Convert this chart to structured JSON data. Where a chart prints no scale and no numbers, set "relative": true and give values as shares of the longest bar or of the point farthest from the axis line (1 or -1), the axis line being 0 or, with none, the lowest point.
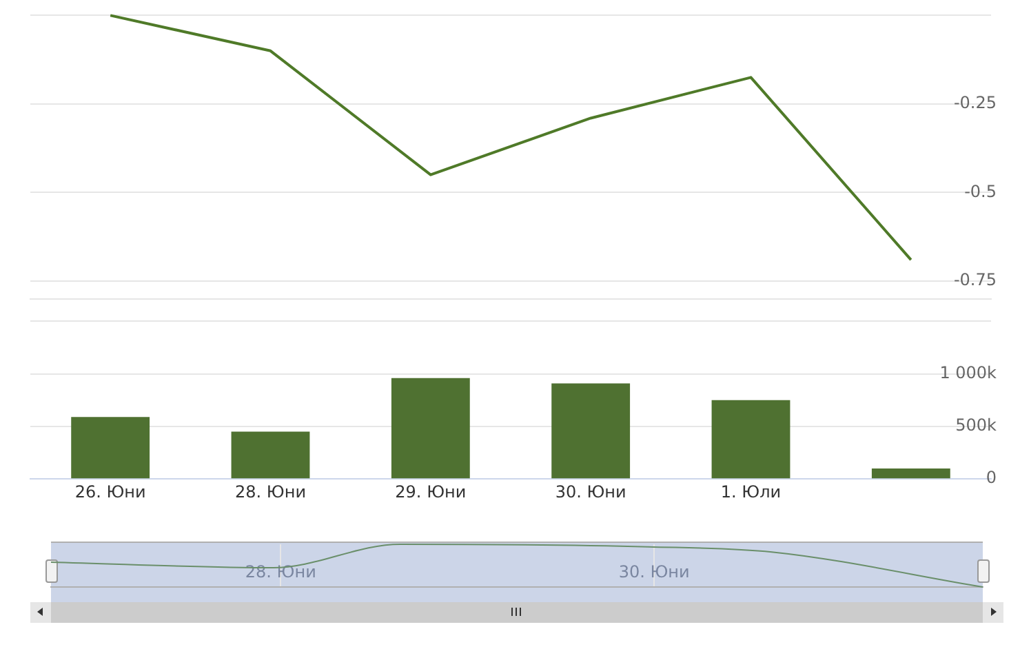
{
  "chart_data": [
    {
      "type": "line",
      "categories": [
        null,
        null,
        null,
        null,
        null,
        null
      ],
      "series": [
        {
          "color": "#4f7a28",
          "values": [
            0,
            -0.1,
            -0.45,
            -0.29,
            -0.175,
            -0.69
          ]
        }
      ],
      "ylim": [
        -0.8,
        0
      ],
      "yticks": [
        {
          "value": 0,
          "label": null
        },
        -0.25,
        -0.5,
        -0.75
      ],
      "grid": "y",
      "tick_labels": "y"
    },
    {
      "type": "bar",
      "categories": [
        "26. Юни",
        "28. Юни",
        "29. Юни",
        "30. Юни",
        "1. Юли",
        null
      ],
      "values": [
        590000,
        450000,
        960000,
        910000,
        750000,
        100000
      ],
      "color": "#4f7131",
      "ylim": [
        0,
        1500000
      ],
      "yticks": [
        {
          "value": 0,
          "label": "0"
        },
        {
          "value": 500000,
          "label": "500k"
        },
        {
          "value": 1000000,
          "label": "1 000k"
        },
        {
          "value": 1500000,
          "label": null
        }
      ],
      "grid": "y"
    },
    {
      "type": "line",
      "x": [
        26.77,
        27.96,
        28.64,
        29.97,
        30.63,
        31.76
      ],
      "series": [
        {
          "color": "#6a8f6a",
          "values": [
            0.58,
            0.45,
            1,
            0.94,
            0.82,
            0
          ]
        }
      ],
      "relative": true,
      "xlim": [
        26.77,
        31.76
      ],
      "xticks": [
        {
          "value": 28,
          "label": "28. Юни"
        },
        {
          "value": 30,
          "label": "30. Юни"
        }
      ],
      "grid": "x",
      "tick_labels": "x"
    }
  ]
}
